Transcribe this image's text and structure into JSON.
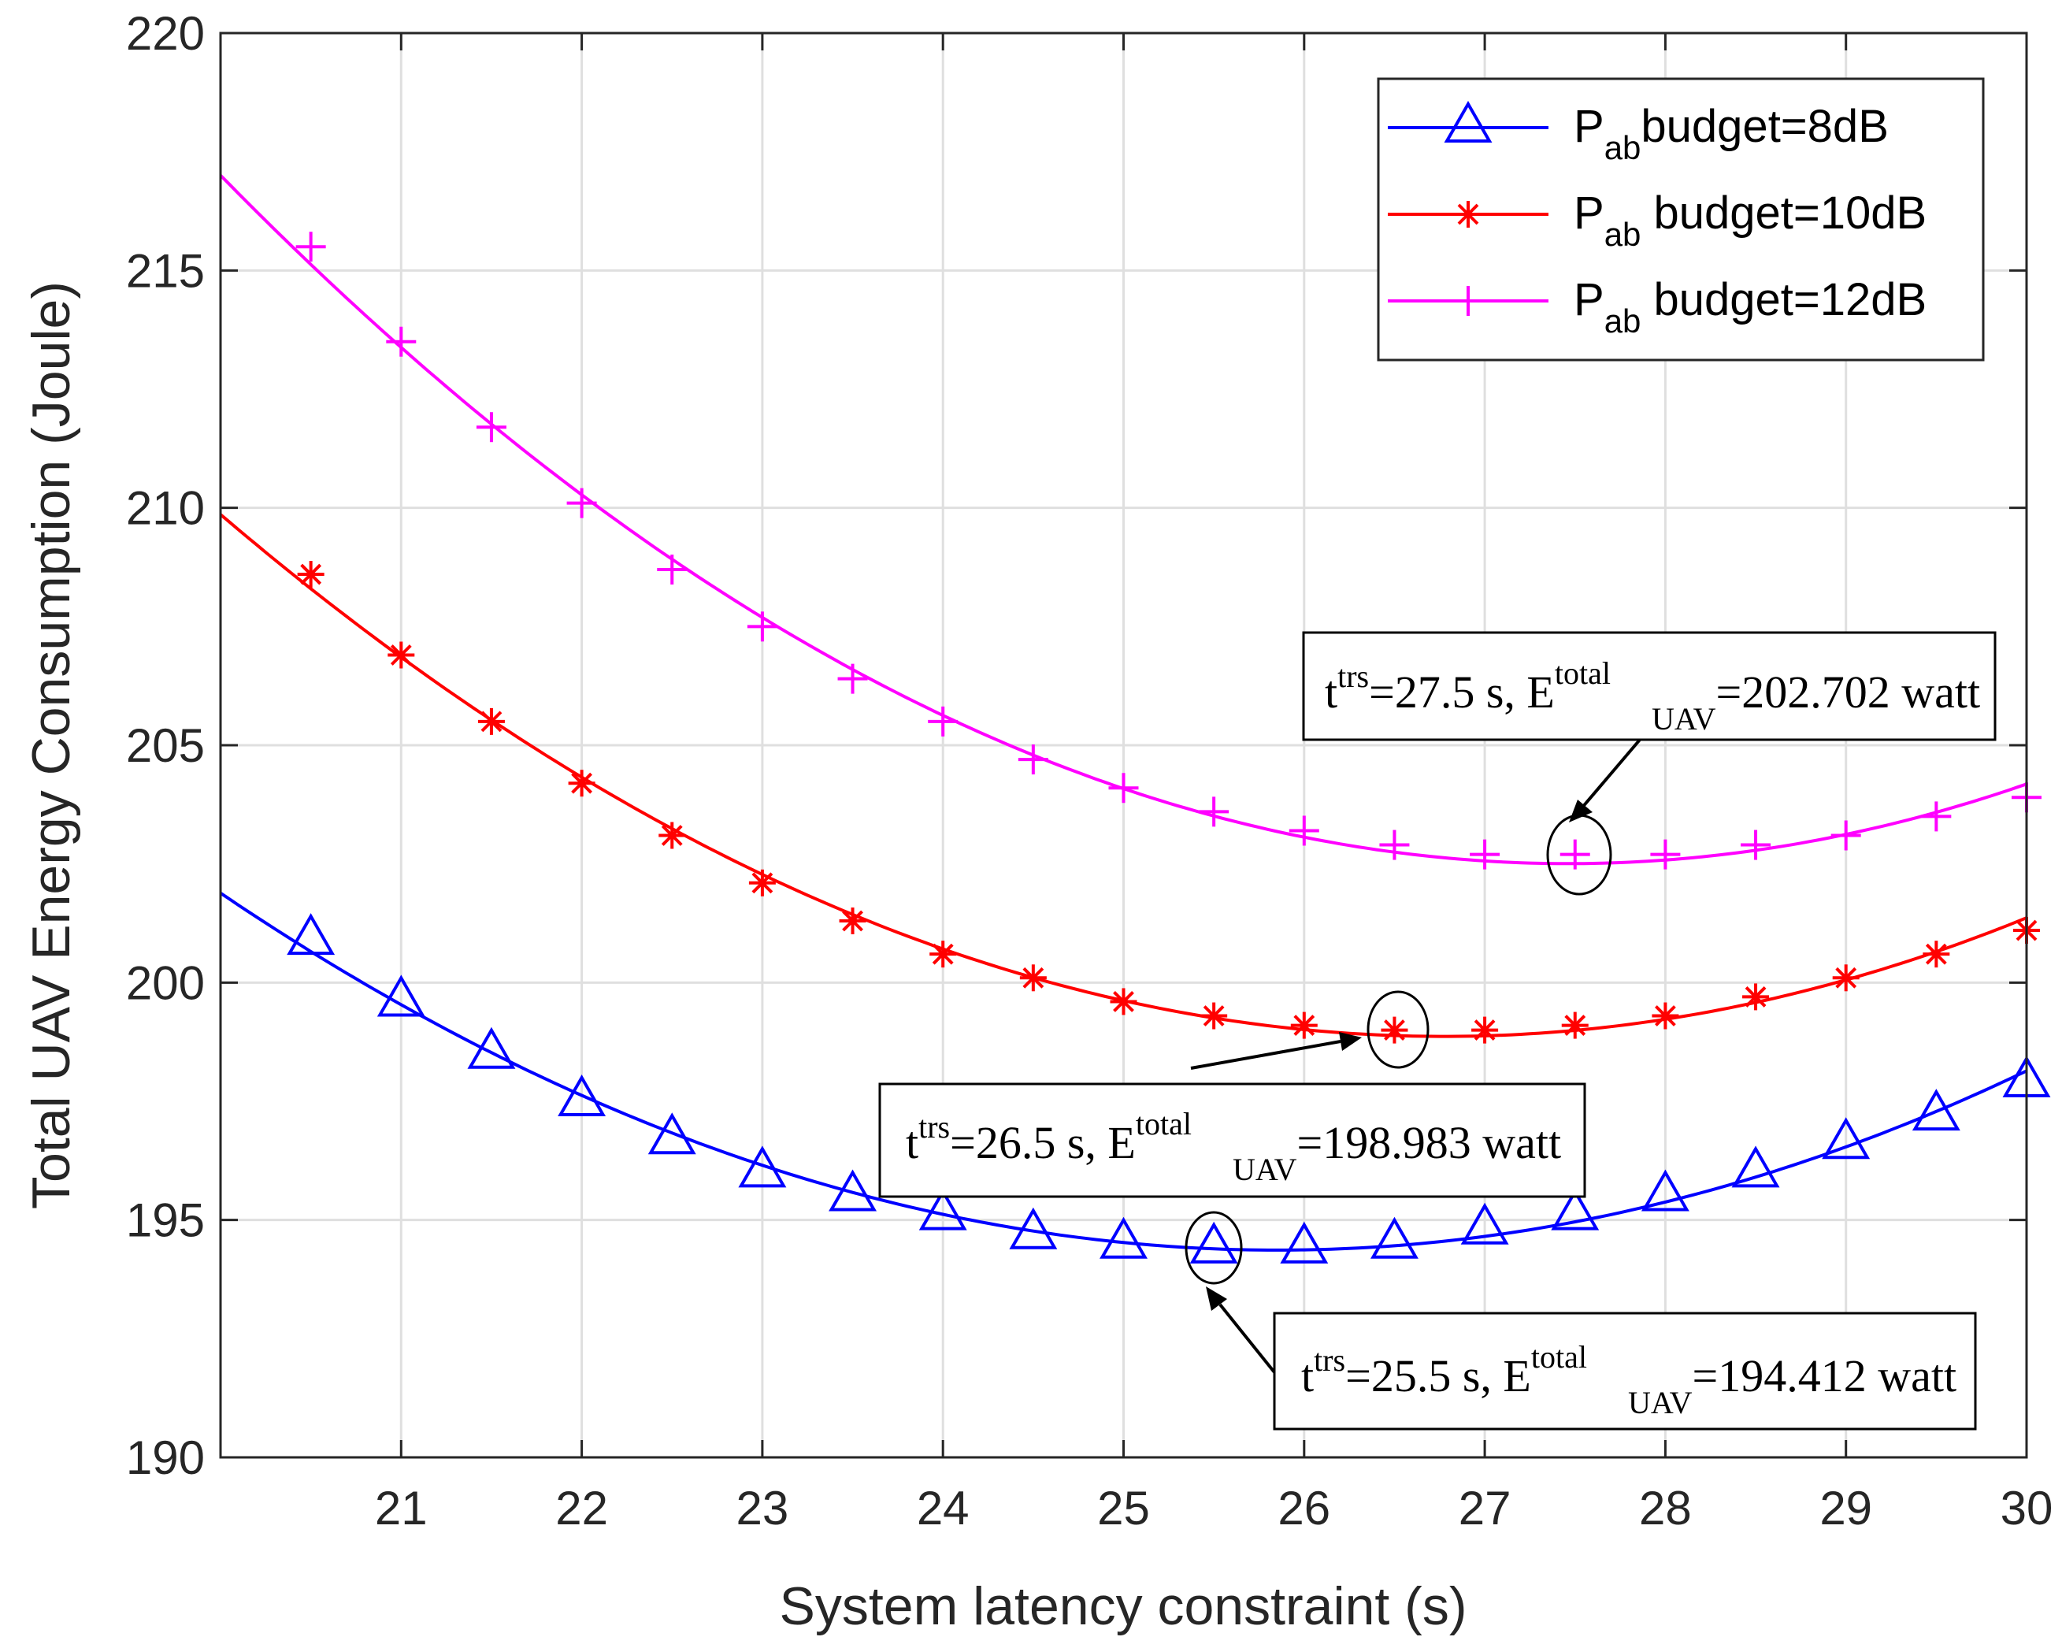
{
  "chart_data": {
    "type": "line",
    "title": "",
    "xlabel": "System latency constraint (s)",
    "ylabel": "Total UAV Energy Consumption (Joule)",
    "xlim": [
      20,
      30
    ],
    "ylim": [
      190,
      220
    ],
    "xticks": [
      21,
      22,
      23,
      24,
      25,
      26,
      27,
      28,
      29,
      30
    ],
    "yticks": [
      190,
      195,
      200,
      205,
      210,
      215,
      220
    ],
    "grid": true,
    "legend_position": "top-right",
    "series": [
      {
        "name": "P_ab budget=8dB",
        "legend_main": "P",
        "legend_sub": "ab",
        "legend_rest": "budget=8dB",
        "color": "#0000ff",
        "marker": "triangle",
        "x": [
          20.5,
          21,
          21.5,
          22,
          22.5,
          23,
          23.5,
          24,
          24.5,
          25,
          25.5,
          26,
          26.5,
          27,
          27.5,
          28,
          28.5,
          29,
          29.5,
          30
        ],
        "y": [
          200.9,
          199.6,
          198.5,
          197.5,
          196.7,
          196.0,
          195.5,
          195.1,
          194.7,
          194.5,
          194.4,
          194.4,
          194.5,
          194.8,
          195.1,
          195.5,
          196.0,
          196.6,
          197.2,
          197.9
        ]
      },
      {
        "name": "P_ab budget=10dB",
        "legend_main": "P",
        "legend_sub": "ab",
        "legend_rest": " budget=10dB",
        "color": "#ff0000",
        "marker": "asterisk",
        "x": [
          20.5,
          21,
          21.5,
          22,
          22.5,
          23,
          23.5,
          24,
          24.5,
          25,
          25.5,
          26,
          26.5,
          27,
          27.5,
          28,
          28.5,
          29,
          29.5,
          30
        ],
        "y": [
          208.6,
          206.9,
          205.5,
          204.2,
          203.1,
          202.1,
          201.3,
          200.6,
          200.1,
          199.6,
          199.3,
          199.1,
          199.0,
          199.0,
          199.1,
          199.3,
          199.7,
          200.1,
          200.6,
          201.1
        ]
      },
      {
        "name": "P_ab budget=12dB",
        "legend_main": "P",
        "legend_sub": "ab",
        "legend_rest": " budget=12dB",
        "color": "#ff00ff",
        "marker": "plus",
        "x": [
          20.5,
          21,
          21.5,
          22,
          22.5,
          23,
          23.5,
          24,
          24.5,
          25,
          25.5,
          26,
          26.5,
          27,
          27.5,
          28,
          28.5,
          29,
          29.5,
          30
        ],
        "y": [
          215.5,
          213.5,
          211.7,
          210.1,
          208.7,
          207.5,
          206.4,
          205.5,
          204.7,
          204.1,
          203.6,
          203.2,
          202.9,
          202.7,
          202.7,
          202.7,
          202.9,
          203.1,
          203.5,
          203.9
        ]
      }
    ],
    "annotations": [
      {
        "series": 2,
        "x": 27.5,
        "y": 202.702,
        "t_prefix": "t",
        "t_sup": "trs",
        "t_val": "=27.5 s, E",
        "e_sup": "total",
        "e_sub": "UAV",
        "e_val": "=202.702 watt"
      },
      {
        "series": 1,
        "x": 26.5,
        "y": 198.983,
        "t_prefix": "t",
        "t_sup": "trs",
        "t_val": "=26.5 s, E",
        "e_sup": "total",
        "e_sub": "UAV",
        "e_val": "=198.983 watt"
      },
      {
        "series": 0,
        "x": 25.5,
        "y": 194.412,
        "t_prefix": "t",
        "t_sup": "trs",
        "t_val": "=25.5 s, E",
        "e_sup": "total",
        "e_sub": "UAV",
        "e_val": "=194.412 watt"
      }
    ]
  }
}
